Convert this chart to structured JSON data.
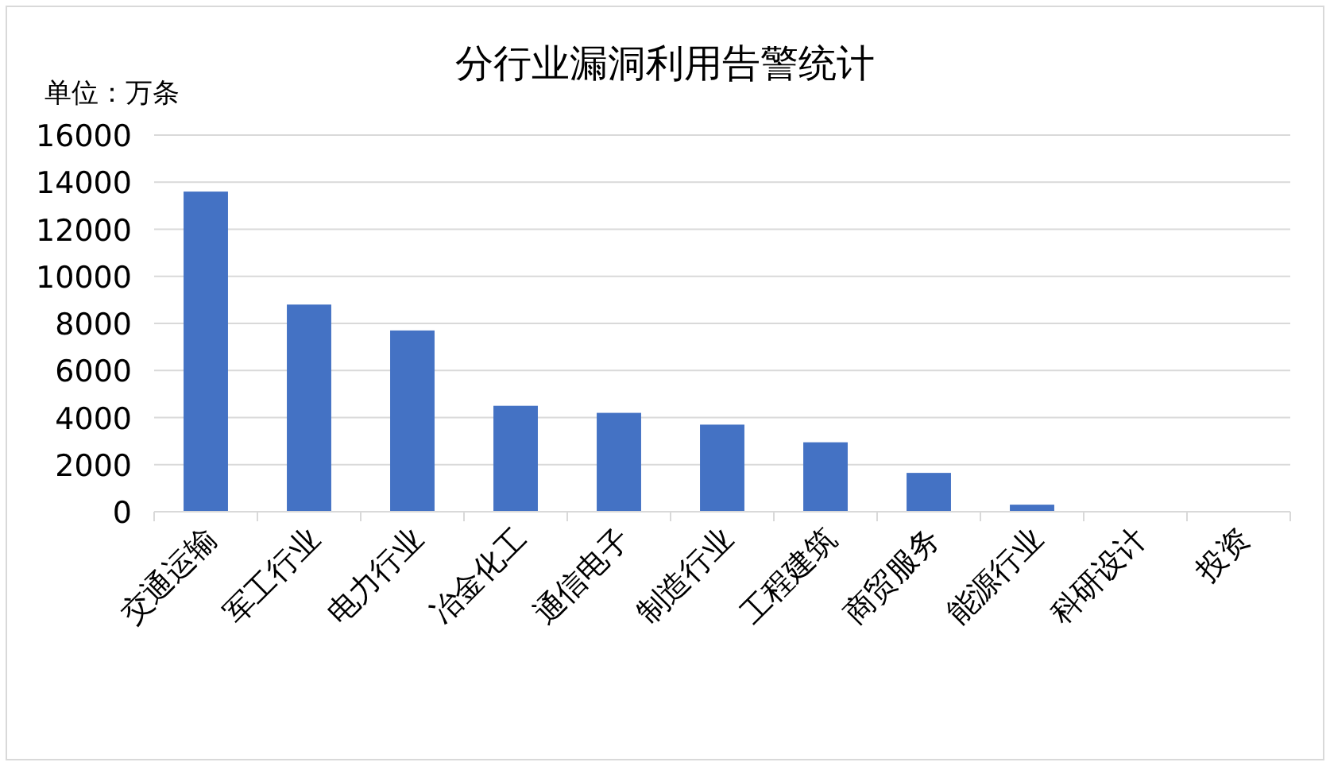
{
  "chart_data": {
    "type": "bar",
    "title": "分行业漏洞利用告警统计",
    "ylabel": "单位：万条",
    "categories": [
      "交通运输",
      "军工行业",
      "电力行业",
      "冶金化工",
      "通信电子",
      "制造行业",
      "工程建筑",
      "商贸服务",
      "能源行业",
      "科研设计",
      "投资"
    ],
    "values": [
      13600,
      8800,
      7700,
      4500,
      4200,
      3700,
      2950,
      1650,
      300,
      0,
      0
    ],
    "color": "#4472c4",
    "ylim": [
      0,
      16000
    ],
    "yticks": [
      0,
      2000,
      4000,
      6000,
      8000,
      10000,
      12000,
      14000,
      16000
    ],
    "grid": "y"
  }
}
